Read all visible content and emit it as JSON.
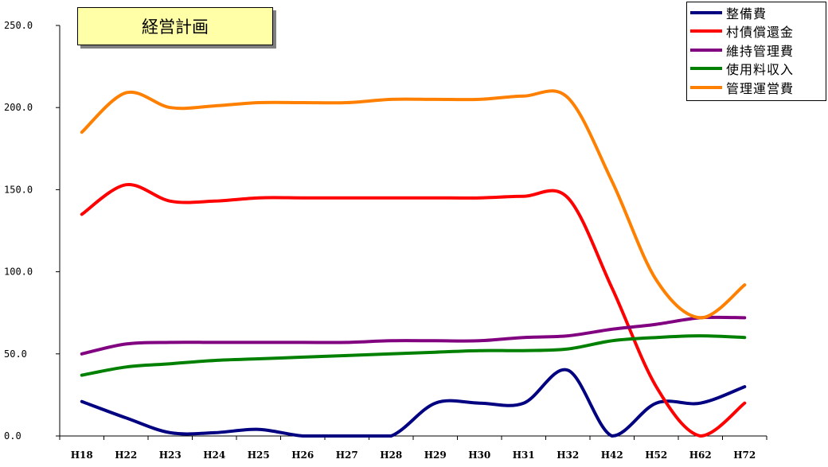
{
  "chart_data": {
    "type": "line",
    "title": "経営計画",
    "xlabel": "",
    "ylabel": "",
    "ylim": [
      0,
      250
    ],
    "y_ticks": [
      "0.0",
      "50.0",
      "100.0",
      "150.0",
      "200.0",
      "250.0"
    ],
    "categories": [
      "H18",
      "H22",
      "H23",
      "H24",
      "H25",
      "H26",
      "H27",
      "H28",
      "H29",
      "H30",
      "H31",
      "H32",
      "H42",
      "H52",
      "H62",
      "H72"
    ],
    "legend_position": "top-right",
    "grid": false,
    "series": [
      {
        "name": "整備費",
        "color": "#000080",
        "values": [
          21,
          11,
          2,
          2,
          4,
          0,
          0,
          0,
          20,
          20,
          20,
          40,
          0,
          20,
          20,
          30
        ]
      },
      {
        "name": "村債償還金",
        "color": "#ff0000",
        "values": [
          135,
          153,
          143,
          143,
          145,
          145,
          145,
          145,
          145,
          145,
          146,
          145,
          90,
          30,
          0,
          20
        ]
      },
      {
        "name": "維持管理費",
        "color": "#800080",
        "values": [
          50,
          56,
          57,
          57,
          57,
          57,
          57,
          58,
          58,
          58,
          60,
          61,
          65,
          68,
          72,
          72
        ]
      },
      {
        "name": "使用料収入",
        "color": "#008000",
        "values": [
          37,
          42,
          44,
          46,
          47,
          48,
          49,
          50,
          51,
          52,
          52,
          53,
          58,
          60,
          61,
          60
        ]
      },
      {
        "name": "管理運営費",
        "color": "#ff8000",
        "values": [
          185,
          209,
          200,
          201,
          203,
          203,
          203,
          205,
          205,
          205,
          207,
          206,
          155,
          95,
          72,
          92
        ]
      }
    ]
  }
}
